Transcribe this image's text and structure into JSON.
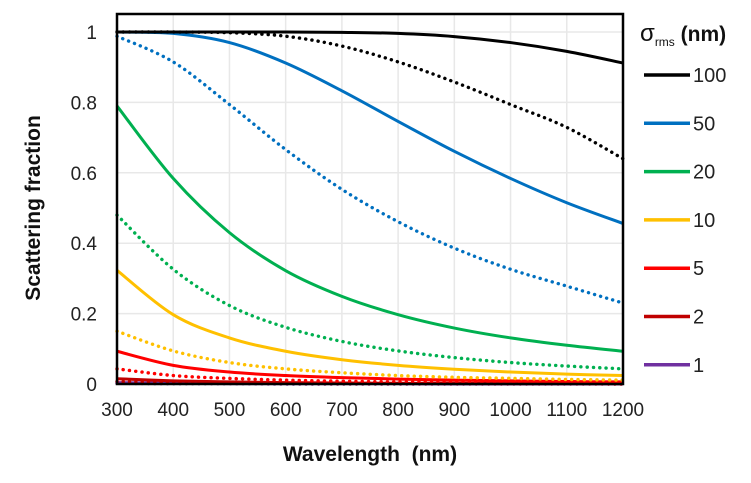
{
  "chart_data": {
    "type": "line",
    "title": "",
    "xlabel": "Wavelength  (nm)",
    "ylabel": "Scattering fraction",
    "xlim": [
      300,
      1200
    ],
    "ylim": [
      0,
      1
    ],
    "grid": true,
    "x_ticks": [
      "300",
      "400",
      "500",
      "600",
      "700",
      "800",
      "900",
      "1000",
      "1100",
      "1200"
    ],
    "y_ticks": [
      "0",
      "0.2",
      "0.4",
      "0.6",
      "0.8",
      "1"
    ],
    "x_tick_values": [
      300,
      400,
      500,
      600,
      700,
      800,
      900,
      1000,
      1100,
      1200
    ],
    "y_tick_values": [
      0,
      0.2,
      0.4,
      0.6,
      0.8,
      1
    ],
    "legend": {
      "title_symbol": "σ",
      "title_sub": "rms",
      "title_unit": " (nm)",
      "placement": "right",
      "entries": [
        {
          "label": "100",
          "color": "#000000"
        },
        {
          "label": "50",
          "color": "#0070C0"
        },
        {
          "label": "20",
          "color": "#00B050"
        },
        {
          "label": "10",
          "color": "#FFC000"
        },
        {
          "label": "5",
          "color": "#FF0000"
        },
        {
          "label": "2",
          "color": "#C00000"
        },
        {
          "label": "1",
          "color": "#7030A0"
        }
      ]
    },
    "x": [
      300,
      400,
      500,
      600,
      700,
      800,
      900,
      1000,
      1100,
      1200
    ],
    "series": [
      {
        "name": "100 solid",
        "sigma": 100,
        "style": "solid",
        "color": "#000000",
        "values": [
          1,
          1,
          1,
          1,
          0.999,
          0.996,
          0.987,
          0.97,
          0.945,
          0.912
        ]
      },
      {
        "name": "100 dotted",
        "sigma": 100,
        "style": "dotted",
        "color": "#000000",
        "values": [
          1,
          1,
          0.998,
          0.988,
          0.96,
          0.915,
          0.858,
          0.794,
          0.729,
          0.64
        ]
      },
      {
        "name": "50 solid",
        "sigma": 50,
        "style": "solid",
        "color": "#0070C0",
        "values": [
          1,
          0.996,
          0.97,
          0.912,
          0.833,
          0.746,
          0.661,
          0.584,
          0.515,
          0.456
        ]
      },
      {
        "name": "50 dotted",
        "sigma": 50,
        "style": "dotted",
        "color": "#0070C0",
        "values": [
          0.988,
          0.915,
          0.794,
          0.666,
          0.553,
          0.461,
          0.386,
          0.326,
          0.278,
          0.23
        ]
      },
      {
        "name": "20 solid",
        "sigma": 20,
        "style": "solid",
        "color": "#00B050",
        "values": [
          0.79,
          0.584,
          0.43,
          0.322,
          0.249,
          0.197,
          0.159,
          0.131,
          0.11,
          0.093
        ]
      },
      {
        "name": "20 dotted",
        "sigma": 20,
        "style": "dotted",
        "color": "#00B050",
        "values": [
          0.48,
          0.326,
          0.223,
          0.161,
          0.121,
          0.094,
          0.075,
          0.061,
          0.051,
          0.043
        ]
      },
      {
        "name": "10 solid",
        "sigma": 10,
        "style": "solid",
        "color": "#FFC000",
        "values": [
          0.323,
          0.197,
          0.131,
          0.093,
          0.069,
          0.053,
          0.042,
          0.034,
          0.028,
          0.024
        ]
      },
      {
        "name": "10 dotted",
        "sigma": 10,
        "style": "dotted",
        "color": "#FFC000",
        "values": [
          0.15,
          0.094,
          0.061,
          0.043,
          0.032,
          0.024,
          0.019,
          0.016,
          0.013,
          0.011
        ]
      },
      {
        "name": "5 solid",
        "sigma": 5,
        "style": "solid",
        "color": "#FF0000",
        "values": [
          0.093,
          0.053,
          0.034,
          0.024,
          0.018,
          0.014,
          0.011,
          0.009,
          0.007,
          0.006
        ]
      },
      {
        "name": "5 dotted",
        "sigma": 5,
        "style": "dotted",
        "color": "#FF0000",
        "values": [
          0.043,
          0.024,
          0.016,
          0.011,
          0.008,
          0.006,
          0.005,
          0.004,
          0.003,
          0.003
        ]
      },
      {
        "name": "2 solid",
        "sigma": 2,
        "style": "solid",
        "color": "#C00000",
        "values": [
          0.015,
          0.009,
          0.006,
          0.004,
          0.003,
          0.002,
          0.002,
          0.001,
          0.001,
          0.001
        ]
      },
      {
        "name": "2 dotted",
        "sigma": 2,
        "style": "dotted",
        "color": "#C00000",
        "values": [
          0.007,
          0.004,
          0.003,
          0.002,
          0.001,
          0.001,
          0.001,
          0.001,
          0.001,
          0
        ]
      },
      {
        "name": "1 solid",
        "sigma": 1,
        "style": "solid",
        "color": "#7030A0",
        "values": [
          0.004,
          0.002,
          0.001,
          0.001,
          0.001,
          0.001,
          0,
          0,
          0,
          0
        ]
      },
      {
        "name": "1 dotted",
        "sigma": 1,
        "style": "dotted",
        "color": "#7030A0",
        "values": [
          0.002,
          0.001,
          0.001,
          0,
          0,
          0,
          0,
          0,
          0,
          0
        ]
      }
    ]
  }
}
